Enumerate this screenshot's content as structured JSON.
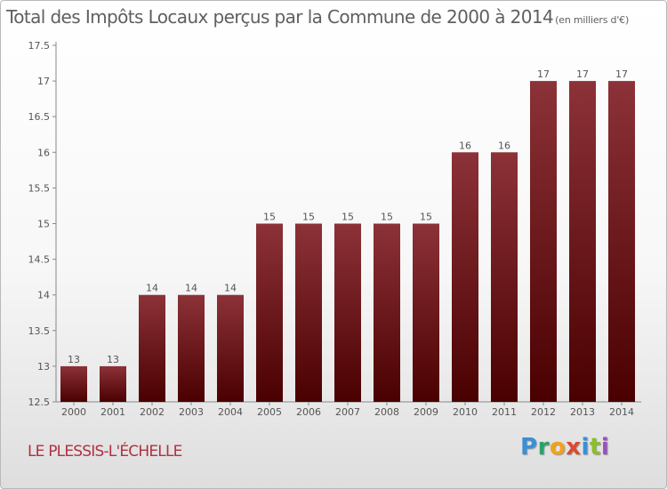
{
  "chart_data": {
    "type": "bar",
    "title": "Total des Impôts Locaux perçus par la Commune de 2000 à 2014",
    "unit_label": "(en milliers d'€)",
    "categories": [
      "2000",
      "2001",
      "2002",
      "2003",
      "2004",
      "2005",
      "2006",
      "2007",
      "2008",
      "2009",
      "2010",
      "2011",
      "2012",
      "2013",
      "2014"
    ],
    "values": [
      13,
      13,
      14,
      14,
      14,
      15,
      15,
      15,
      15,
      15,
      16,
      16,
      17,
      17,
      17
    ],
    "ylim": [
      12.5,
      17.5
    ],
    "yticks": [
      12.5,
      13,
      13.5,
      14,
      14.5,
      15,
      15.5,
      16,
      16.5,
      17,
      17.5
    ],
    "ytick_labels": [
      "12.5",
      "13",
      "13.5",
      "14",
      "14.5",
      "15",
      "15.5",
      "16",
      "16.5",
      "17",
      "17.5"
    ],
    "xlabel": "",
    "ylabel": "",
    "bar_color_top": "#8c3238",
    "bar_color_bottom": "#4a0000"
  },
  "footer": {
    "commune": "LE PLESSIS-L'ÉCHELLE",
    "logo_letters": [
      "P",
      "r",
      "o",
      "x",
      "i",
      "t",
      "i"
    ],
    "logo_colors": [
      "#3a8fd8",
      "#2aa36a",
      "#f2a21a",
      "#e04830",
      "#3a8fd8",
      "#8cbf2a",
      "#9a4fc0"
    ]
  }
}
